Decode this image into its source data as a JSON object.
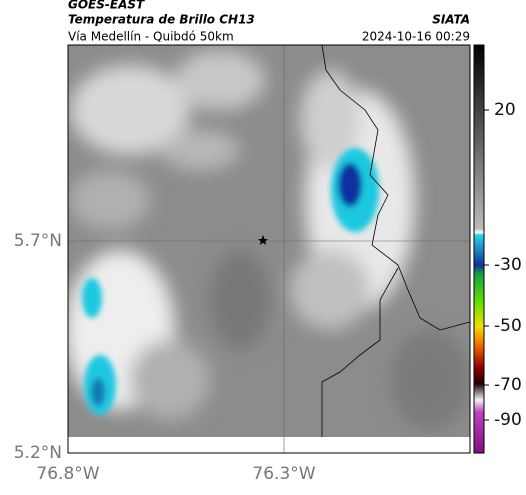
{
  "header": {
    "satellite": "GOES-EAST",
    "product": "Temperatura de Brillo CH13",
    "source": "SIATA",
    "region": "Vía Medellín - Quibdó 50km",
    "timestamp": "2024-10-16 00:29"
  },
  "map": {
    "lat_labels": [
      "5.7°N",
      "5.2°N"
    ],
    "lon_labels": [
      "76.8°W",
      "76.3°W"
    ]
  },
  "colorbar": {
    "ticks": [
      20,
      -30,
      -50,
      -70,
      -90
    ]
  }
}
